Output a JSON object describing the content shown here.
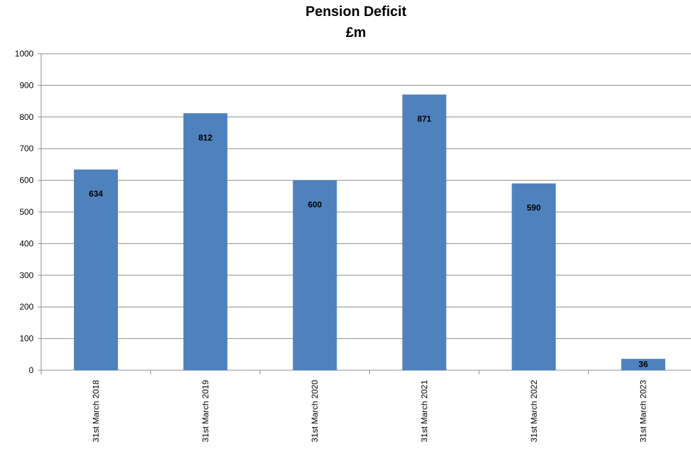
{
  "chart_data": {
    "type": "bar",
    "title": "Pension Deficit",
    "subtitle": "£m",
    "categories": [
      "31st March 2018",
      "31st March 2019",
      "31st March 2020",
      "31st March 2021",
      "31st March 2022",
      "31st March 2023"
    ],
    "values": [
      634,
      812,
      600,
      871,
      590,
      36
    ],
    "ylim": [
      0,
      1000
    ],
    "yticks": [
      0,
      100,
      200,
      300,
      400,
      500,
      600,
      700,
      800,
      900,
      1000
    ],
    "grid": true,
    "bar_color": "#4f81bd",
    "xlabel": "",
    "ylabel": ""
  }
}
